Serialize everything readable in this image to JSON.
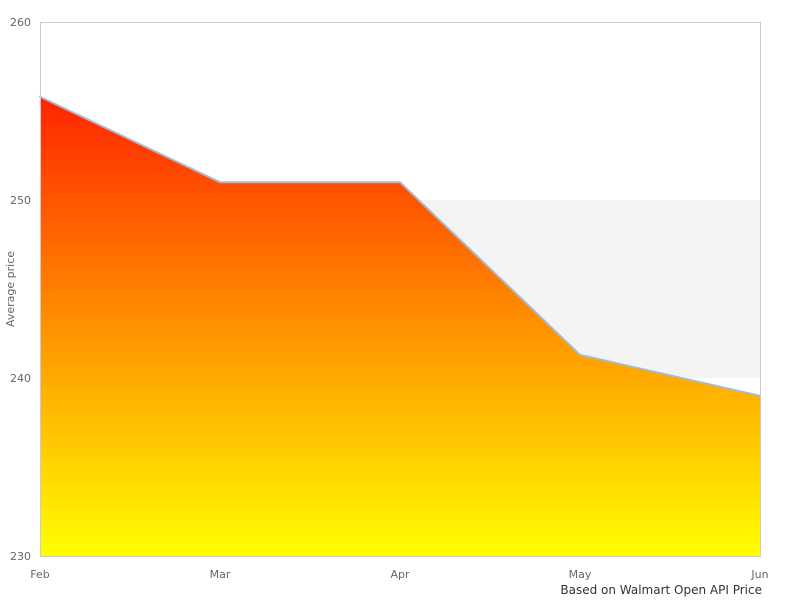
{
  "chart_data": {
    "type": "area",
    "categories": [
      "Feb",
      "Mar",
      "Apr",
      "May",
      "Jun"
    ],
    "series": [
      {
        "name": "Average price",
        "values": [
          255.8,
          251,
          251,
          241.3,
          239
        ]
      }
    ],
    "title": "",
    "xlabel": "",
    "ylabel": "Average price",
    "ylim": [
      230,
      260
    ],
    "yticks": [
      230,
      240,
      250,
      260
    ],
    "alternate_band": {
      "from": 240,
      "to": 250,
      "color": "#f4f4f4"
    },
    "caption": "Based on Walmart Open API Price",
    "grid": false,
    "legend": "none",
    "colors": {
      "line": "#9fbcd8",
      "area_gradient_top": "#ff0000",
      "area_gradient_bottom": "#ffff00",
      "plot_border": "#cccccc",
      "tick_label": "#666666",
      "axis_title": "#666666",
      "caption_text": "#333333",
      "background": "#ffffff"
    }
  }
}
